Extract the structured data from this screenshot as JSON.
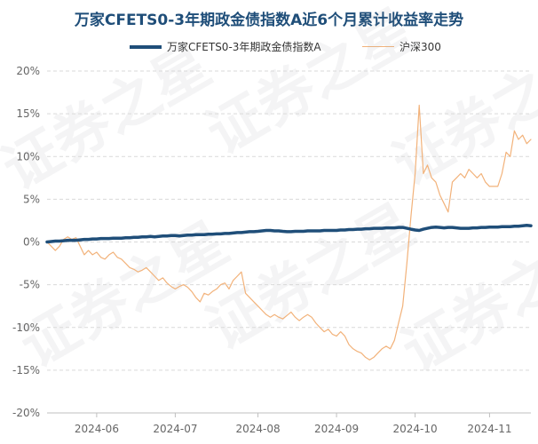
{
  "chart_data": {
    "type": "line",
    "title": "万家CFETS0-3年期政金债指数A近6个月累计收益率走势",
    "xlabel": "",
    "ylabel": "",
    "y_tick_labels": [
      "20%",
      "15%",
      "10%",
      "5%",
      "0%",
      "-5%",
      "-10%",
      "-15%",
      "-20%"
    ],
    "y_tick_values": [
      20,
      15,
      10,
      5,
      0,
      -5,
      -10,
      -15,
      -20
    ],
    "ylim": [
      -20,
      20
    ],
    "x_tick_labels": [
      "2024-06",
      "2024-07",
      "2024-08",
      "2024-09",
      "2024-10",
      "2024-11"
    ],
    "x_tick_positions": [
      12,
      31,
      51,
      70,
      89,
      107
    ],
    "xlim": [
      0,
      117
    ],
    "grid": "horizontal",
    "legend_position": "top",
    "watermark": "证券之星",
    "series": [
      {
        "name": "万家CFETS0-3年期政金债指数A",
        "color": "#1f4e79",
        "values": [
          0.0,
          0.05,
          0.1,
          0.1,
          0.15,
          0.2,
          0.2,
          0.2,
          0.25,
          0.3,
          0.3,
          0.35,
          0.35,
          0.4,
          0.4,
          0.4,
          0.45,
          0.45,
          0.45,
          0.5,
          0.5,
          0.55,
          0.55,
          0.6,
          0.6,
          0.65,
          0.6,
          0.65,
          0.7,
          0.7,
          0.75,
          0.75,
          0.7,
          0.75,
          0.8,
          0.8,
          0.85,
          0.85,
          0.85,
          0.9,
          0.9,
          0.95,
          0.95,
          1.0,
          1.0,
          1.05,
          1.1,
          1.1,
          1.15,
          1.2,
          1.2,
          1.25,
          1.3,
          1.35,
          1.35,
          1.3,
          1.3,
          1.25,
          1.2,
          1.2,
          1.25,
          1.25,
          1.25,
          1.3,
          1.3,
          1.3,
          1.3,
          1.35,
          1.35,
          1.35,
          1.35,
          1.4,
          1.4,
          1.45,
          1.45,
          1.5,
          1.5,
          1.55,
          1.55,
          1.6,
          1.6,
          1.6,
          1.65,
          1.65,
          1.65,
          1.7,
          1.7,
          1.6,
          1.5,
          1.4,
          1.35,
          1.5,
          1.6,
          1.7,
          1.75,
          1.7,
          1.65,
          1.7,
          1.7,
          1.65,
          1.6,
          1.6,
          1.6,
          1.65,
          1.65,
          1.7,
          1.7,
          1.75,
          1.75,
          1.75,
          1.8,
          1.8,
          1.8,
          1.85,
          1.85,
          1.9,
          1.95,
          1.9
        ]
      },
      {
        "name": "沪深300",
        "color": "#f2b27a",
        "values": [
          0.0,
          -0.5,
          -1.0,
          -0.5,
          0.3,
          0.6,
          0.3,
          0.5,
          -0.5,
          -1.5,
          -1.0,
          -1.5,
          -1.2,
          -1.8,
          -2.0,
          -1.5,
          -1.2,
          -1.8,
          -2.0,
          -2.5,
          -3.0,
          -3.2,
          -3.5,
          -3.3,
          -3.0,
          -3.5,
          -4.0,
          -4.5,
          -4.2,
          -4.8,
          -5.2,
          -5.5,
          -5.2,
          -5.0,
          -5.3,
          -5.8,
          -6.5,
          -7.0,
          -6.0,
          -6.2,
          -5.8,
          -5.5,
          -5.0,
          -4.8,
          -5.5,
          -4.5,
          -4.0,
          -3.5,
          -6.0,
          -6.5,
          -7.0,
          -7.5,
          -8.0,
          -8.5,
          -8.8,
          -8.5,
          -8.8,
          -9.0,
          -8.6,
          -8.2,
          -8.8,
          -9.2,
          -8.8,
          -8.5,
          -8.8,
          -9.5,
          -10.0,
          -10.5,
          -10.2,
          -10.8,
          -11.0,
          -10.5,
          -11.0,
          -12.0,
          -12.5,
          -12.8,
          -13.0,
          -13.5,
          -13.8,
          -13.5,
          -13.0,
          -12.5,
          -12.2,
          -12.5,
          -11.5,
          -9.5,
          -7.5,
          -2.5,
          3.0,
          8.0,
          16.0,
          8.0,
          9.0,
          7.5,
          7.0,
          5.5,
          4.5,
          3.5,
          7.0,
          7.5,
          8.0,
          7.5,
          8.5,
          8.0,
          7.5,
          8.0,
          7.0,
          6.5,
          6.5,
          6.5,
          8.0,
          10.5,
          10.0,
          13.0,
          12.0,
          12.5,
          11.5,
          12.0
        ]
      }
    ]
  }
}
